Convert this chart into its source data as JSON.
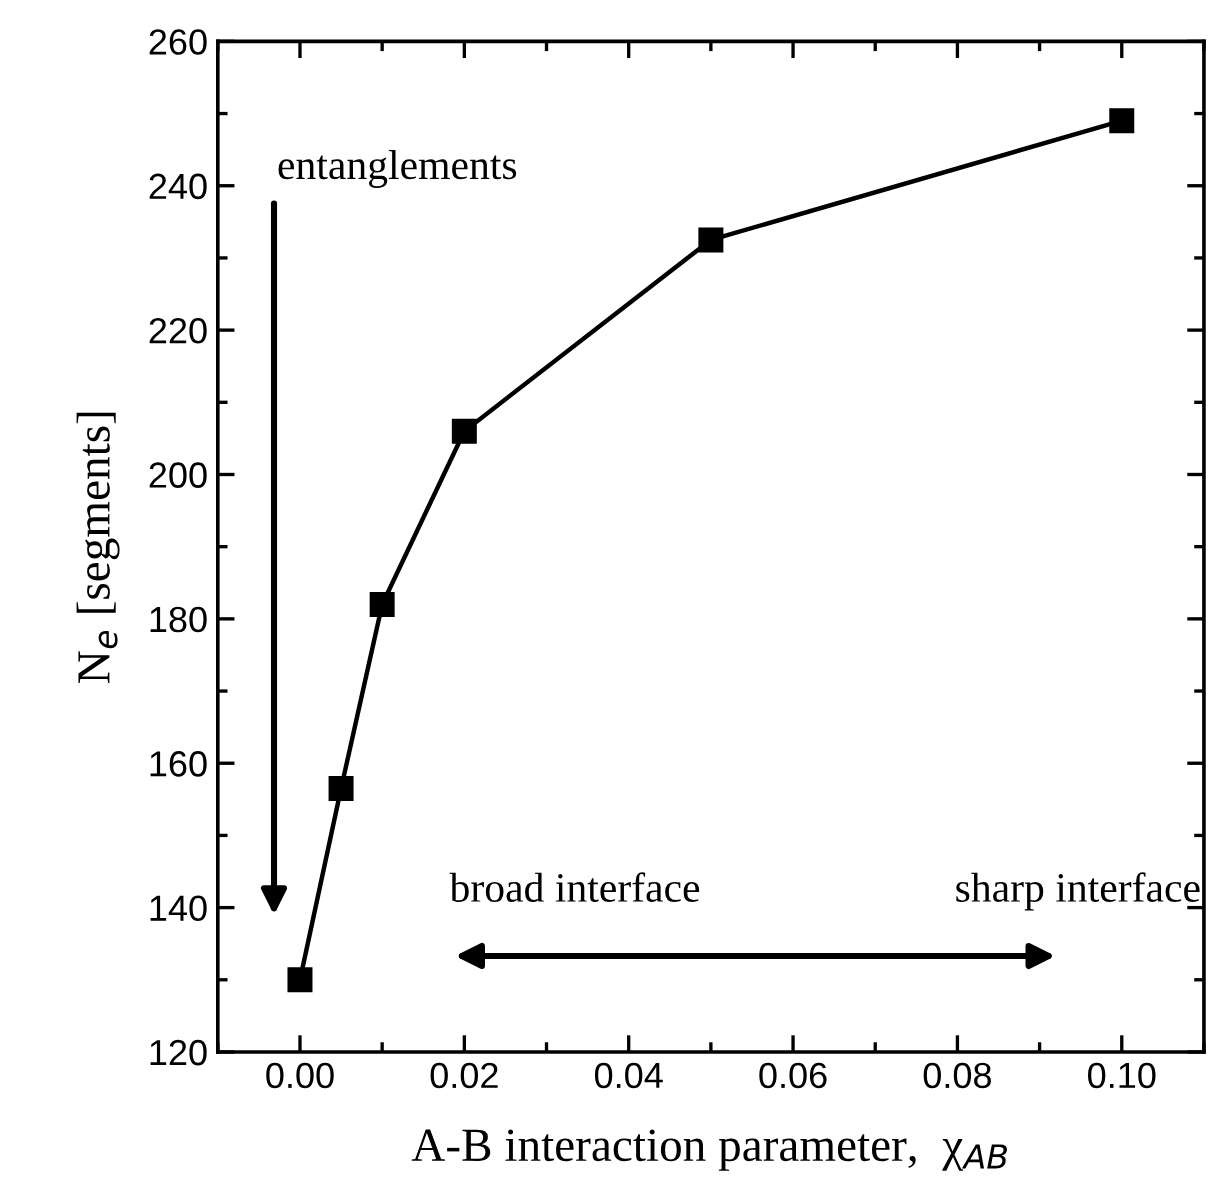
{
  "chart_data": {
    "type": "line",
    "xlabel": "A-B interaction parameter,  χ$_{AB}$",
    "ylabel": "N$_{e}$ [segments]",
    "x": [
      0.0,
      0.005,
      0.01,
      0.02,
      0.05,
      0.1
    ],
    "series": [
      {
        "color": "#000000",
        "values": [
          130,
          156.5,
          182,
          206,
          232.5,
          249
        ]
      }
    ],
    "marker": "square",
    "line_style": "solid",
    "xlim": [
      -0.01,
      0.11
    ],
    "xticks": [
      {
        "value": 0.0,
        "label": "0.00"
      },
      {
        "value": 0.02,
        "label": "0.02"
      },
      {
        "value": 0.04,
        "label": "0.04"
      },
      {
        "value": 0.06,
        "label": "0.06"
      },
      {
        "value": 0.08,
        "label": "0.08"
      },
      {
        "value": 0.1,
        "label": "0.10"
      }
    ],
    "ylim": [
      120,
      260
    ],
    "yticks": [
      120,
      140,
      160,
      180,
      200,
      220,
      240,
      260
    ],
    "annotations": [
      "entanglements",
      "broad interface",
      "sharp interface"
    ]
  }
}
